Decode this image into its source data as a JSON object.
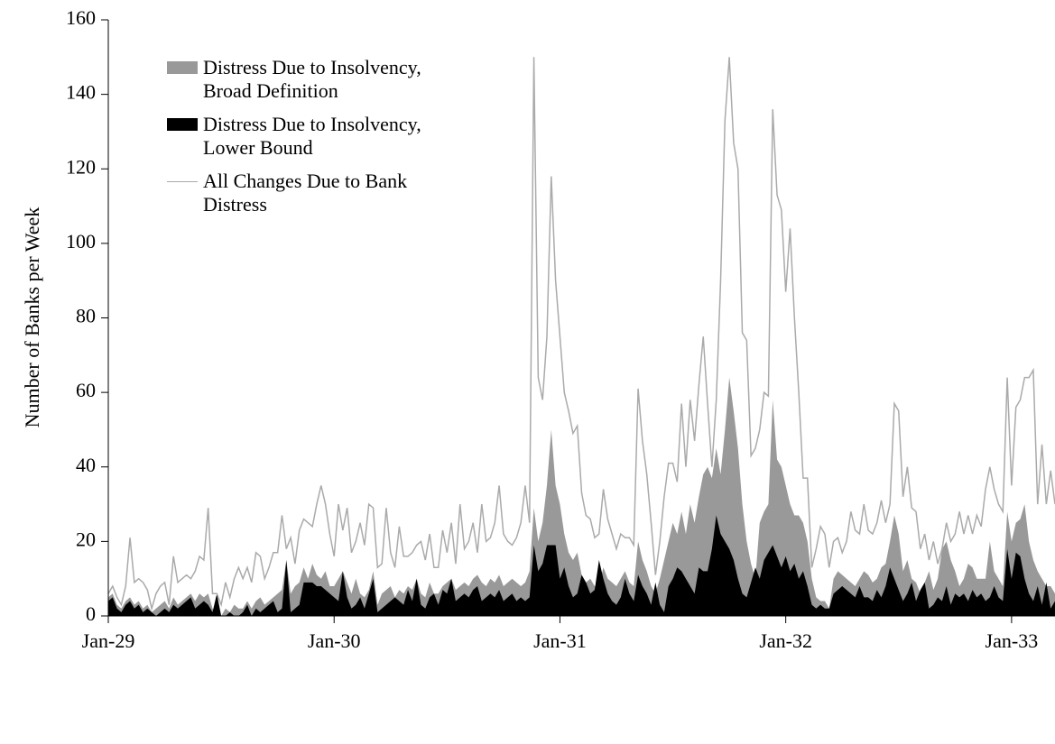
{
  "chart_data": {
    "type": "area",
    "y_label": "Number of Banks per Week",
    "x": [
      0,
      1,
      2,
      3,
      4,
      5,
      6,
      7,
      8,
      9,
      10,
      11,
      12,
      13,
      14,
      15,
      16,
      17,
      18,
      19,
      20,
      21,
      22,
      23,
      24,
      25,
      26,
      27,
      28,
      29,
      30,
      31,
      32,
      33,
      34,
      35,
      36,
      37,
      38,
      39,
      40,
      41,
      42,
      43,
      44,
      45,
      46,
      47,
      48,
      49,
      50,
      51,
      52,
      53,
      54,
      55,
      56,
      57,
      58,
      59,
      60,
      61,
      62,
      63,
      64,
      65,
      66,
      67,
      68,
      69,
      70,
      71,
      72,
      73,
      74,
      75,
      76,
      77,
      78,
      79,
      80,
      81,
      82,
      83,
      84,
      85,
      86,
      87,
      88,
      89,
      90,
      91,
      92,
      93,
      94,
      95,
      96,
      97,
      98,
      99,
      100,
      101,
      102,
      103,
      104,
      105,
      106,
      107,
      108,
      109,
      110,
      111,
      112,
      113,
      114,
      115,
      116,
      117,
      118,
      119,
      120,
      121,
      122,
      123,
      124,
      125,
      126,
      127,
      128,
      129,
      130,
      131,
      132,
      133,
      134,
      135,
      136,
      137,
      138,
      139,
      140,
      141,
      142,
      143,
      144,
      145,
      146,
      147,
      148,
      149,
      150,
      151,
      152,
      153,
      154,
      155,
      156,
      157,
      158,
      159,
      160,
      161,
      162,
      163,
      164,
      165,
      166,
      167,
      168,
      169,
      170,
      171,
      172,
      173,
      174,
      175,
      176,
      177,
      178,
      179,
      180,
      181,
      182,
      183,
      184,
      185,
      186,
      187,
      188,
      189,
      190,
      191,
      192,
      193,
      194,
      195,
      196,
      197,
      198,
      199,
      200,
      201,
      202,
      203,
      204,
      205,
      206,
      207,
      208,
      209,
      210,
      211,
      212,
      213,
      214,
      215,
      216,
      217,
      218
    ],
    "series": [
      {
        "name": "Distress Due to Insolvency, Broad Definition",
        "color": "#999999",
        "style": "area",
        "values": [
          5,
          6,
          3,
          2,
          4,
          5,
          3,
          4,
          2,
          3,
          1,
          2,
          3,
          4,
          2,
          5,
          3,
          4,
          5,
          6,
          4,
          6,
          5,
          6,
          2,
          1,
          0,
          2,
          1,
          3,
          2,
          2,
          4,
          2,
          4,
          5,
          3,
          4,
          5,
          6,
          7,
          15,
          6,
          8,
          9,
          13,
          10,
          14,
          11,
          10,
          12,
          8,
          8,
          10,
          12,
          9,
          6,
          10,
          6,
          5,
          7,
          12,
          3,
          6,
          7,
          8,
          5,
          7,
          6,
          8,
          7,
          10,
          6,
          5,
          9,
          6,
          6,
          8,
          9,
          10,
          7,
          8,
          9,
          8,
          10,
          11,
          9,
          8,
          10,
          9,
          11,
          8,
          9,
          10,
          9,
          8,
          9,
          12,
          29,
          20,
          25,
          35,
          50,
          35,
          30,
          22,
          17,
          15,
          17,
          11,
          9,
          10,
          8,
          8,
          13,
          10,
          9,
          8,
          10,
          12,
          9,
          8,
          20,
          15,
          12,
          8,
          6,
          10,
          15,
          20,
          25,
          22,
          28,
          22,
          30,
          25,
          32,
          38,
          40,
          37,
          45,
          38,
          50,
          64,
          55,
          45,
          30,
          20,
          14,
          10,
          25,
          28,
          30,
          58,
          42,
          40,
          35,
          30,
          27,
          27,
          25,
          20,
          10,
          5,
          4,
          4,
          2,
          10,
          12,
          11,
          10,
          9,
          8,
          10,
          12,
          11,
          9,
          10,
          13,
          14,
          20,
          27,
          22,
          12,
          15,
          10,
          9,
          6,
          9,
          12,
          7,
          10,
          18,
          20,
          15,
          12,
          8,
          10,
          14,
          13,
          10,
          10,
          10,
          20,
          12,
          10,
          8,
          28,
          20,
          25,
          26,
          30,
          20,
          15,
          12,
          10,
          8,
          8,
          6
        ]
      },
      {
        "name": "Distress Due to Insolvency, Lower Bound",
        "color": "#000000",
        "style": "area",
        "values": [
          4,
          5,
          2,
          1,
          3,
          4,
          2,
          3,
          1,
          2,
          1,
          0,
          1,
          2,
          1,
          3,
          2,
          3,
          4,
          5,
          2,
          3,
          4,
          3,
          1,
          6,
          0,
          0,
          1,
          0,
          0,
          1,
          3,
          0,
          2,
          1,
          2,
          3,
          4,
          1,
          2,
          15,
          1,
          2,
          3,
          9,
          9,
          9,
          8,
          8,
          7,
          6,
          5,
          4,
          12,
          5,
          2,
          3,
          5,
          2,
          6,
          10,
          1,
          2,
          3,
          4,
          5,
          4,
          3,
          7,
          4,
          10,
          3,
          2,
          5,
          6,
          3,
          7,
          6,
          10,
          4,
          5,
          6,
          5,
          7,
          8,
          4,
          5,
          6,
          5,
          7,
          4,
          5,
          6,
          4,
          5,
          4,
          5,
          19,
          12,
          14,
          19,
          19,
          19,
          10,
          13,
          8,
          5,
          6,
          11,
          9,
          6,
          7,
          15,
          10,
          6,
          4,
          3,
          5,
          10,
          6,
          4,
          11,
          8,
          6,
          3,
          9,
          3,
          1,
          8,
          10,
          13,
          12,
          10,
          8,
          6,
          13,
          12,
          12,
          18,
          27,
          22,
          20,
          18,
          15,
          10,
          6,
          5,
          9,
          13,
          10,
          15,
          17,
          19,
          16,
          13,
          16,
          12,
          14,
          10,
          12,
          8,
          3,
          2,
          3,
          2,
          2,
          6,
          7,
          8,
          7,
          6,
          5,
          8,
          5,
          5,
          4,
          7,
          5,
          8,
          13,
          10,
          7,
          4,
          6,
          9,
          4,
          7,
          9,
          2,
          3,
          5,
          4,
          8,
          3,
          6,
          5,
          6,
          4,
          7,
          5,
          6,
          4,
          5,
          8,
          5,
          4,
          18,
          10,
          17,
          16,
          10,
          6,
          4,
          8,
          3,
          9,
          2,
          4
        ]
      },
      {
        "name": "All Changes Due to Bank Distress",
        "color": "#aaaaaa",
        "style": "line",
        "values": [
          6,
          8,
          5,
          3,
          8,
          21,
          9,
          10,
          9,
          7,
          2,
          6,
          8,
          9,
          3,
          16,
          9,
          10,
          11,
          10,
          12,
          16,
          15,
          29,
          6,
          6,
          3,
          9,
          5,
          10,
          13,
          10,
          13,
          9,
          17,
          16,
          10,
          13,
          17,
          17,
          27,
          18,
          21,
          14,
          23,
          26,
          25,
          24,
          30,
          35,
          30,
          22,
          16,
          30,
          23,
          29,
          17,
          20,
          25,
          19,
          30,
          29,
          13,
          14,
          29,
          17,
          13,
          24,
          16,
          16,
          17,
          19,
          20,
          15,
          22,
          13,
          13,
          23,
          17,
          25,
          14,
          30,
          18,
          20,
          25,
          17,
          30,
          20,
          21,
          25,
          35,
          22,
          20,
          19,
          21,
          25,
          35,
          25,
          150,
          64,
          58,
          75,
          118,
          90,
          75,
          60,
          55,
          49,
          51,
          33,
          27,
          26,
          21,
          22,
          34,
          26,
          22,
          18,
          22,
          21,
          21,
          19,
          61,
          47,
          38,
          25,
          11,
          20,
          32,
          41,
          41,
          36,
          57,
          40,
          58,
          47,
          62,
          75,
          57,
          40,
          58,
          90,
          133,
          150,
          127,
          120,
          76,
          74,
          43,
          45,
          50,
          60,
          59,
          136,
          113,
          109,
          87,
          104,
          80,
          60,
          37,
          37,
          13,
          18,
          24,
          22,
          13,
          20,
          21,
          17,
          20,
          28,
          23,
          22,
          30,
          23,
          22,
          25,
          31,
          25,
          30,
          57,
          55,
          32,
          40,
          29,
          28,
          18,
          22,
          15,
          20,
          14,
          18,
          25,
          20,
          22,
          28,
          22,
          27,
          22,
          27,
          24,
          34,
          40,
          34,
          30,
          28,
          64,
          35,
          56,
          58,
          64,
          64,
          66,
          30,
          46,
          30,
          39,
          30
        ]
      }
    ],
    "xlim": [
      0,
      218
    ],
    "xticks": [
      {
        "value": 0,
        "label": "Jan-29"
      },
      {
        "value": 52,
        "label": "Jan-30"
      },
      {
        "value": 104,
        "label": "Jan-31"
      },
      {
        "value": 156,
        "label": "Jan-32"
      },
      {
        "value": 208,
        "label": "Jan-33"
      }
    ],
    "ylim": [
      0,
      160
    ],
    "yticks": [
      0,
      20,
      40,
      60,
      80,
      100,
      120,
      140,
      160
    ],
    "legend": "upper-left"
  }
}
